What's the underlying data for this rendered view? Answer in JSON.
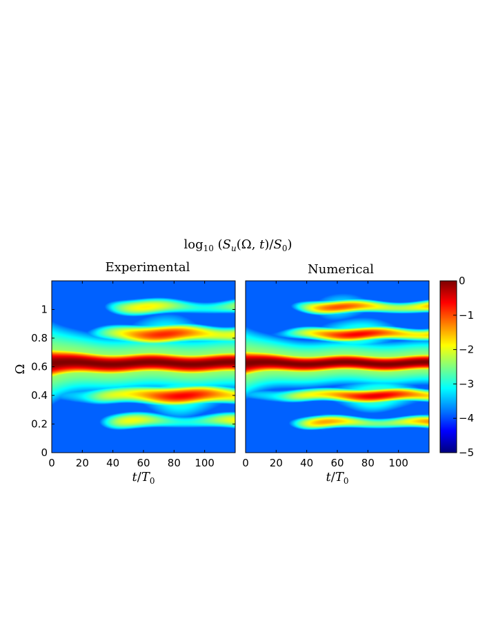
{
  "figure": {
    "title": "log 10 (Su(Ω, t)/S0)"
  },
  "chart_data": [
    {
      "type": "heatmap",
      "title": "Experimental",
      "xlabel": "t/T0",
      "ylabel": "Ω",
      "xlim": [
        0,
        120
      ],
      "ylim": [
        0,
        1.2
      ],
      "xticks": [
        "0",
        "20",
        "40",
        "60",
        "80",
        "100"
      ],
      "yticks": [
        "0",
        "0.2",
        "0.4",
        "0.6",
        "0.8",
        "1"
      ],
      "clim": [
        -5,
        0
      ],
      "bands": [
        {
          "omega": 0.625,
          "start": 0,
          "peak": 0.0,
          "width": 0.018
        },
        {
          "omega": 0.4,
          "start": 15,
          "peak": -0.6,
          "width": 0.018
        },
        {
          "omega": 0.83,
          "start": 15,
          "peak": -0.8,
          "width": 0.018
        },
        {
          "omega": 1.02,
          "start": 20,
          "peak": -1.8,
          "width": 0.018
        },
        {
          "omega": 0.22,
          "start": 20,
          "peak": -1.8,
          "width": 0.018
        }
      ]
    },
    {
      "type": "heatmap",
      "title": "Numerical",
      "xlabel": "t/T0",
      "ylabel": "",
      "xlim": [
        0,
        120
      ],
      "ylim": [
        0,
        1.2
      ],
      "xticks": [
        "0",
        "20",
        "40",
        "60",
        "80",
        "100"
      ],
      "yticks": [],
      "clim": [
        -5,
        0
      ],
      "bands": [
        {
          "omega": 0.625,
          "start": 0,
          "peak": 0.0,
          "width": 0.018
        },
        {
          "omega": 0.4,
          "start": 15,
          "peak": -0.5,
          "width": 0.016
        },
        {
          "omega": 0.83,
          "start": 15,
          "peak": -0.6,
          "width": 0.016
        },
        {
          "omega": 1.02,
          "start": 20,
          "peak": -1.0,
          "width": 0.016
        },
        {
          "omega": 0.21,
          "start": 20,
          "peak": -1.3,
          "width": 0.016
        }
      ]
    }
  ],
  "colorbar": {
    "ticks": [
      "0",
      "−1",
      "−2",
      "−3",
      "−4",
      "−5"
    ],
    "values": [
      0,
      -1,
      -2,
      -3,
      -4,
      -5
    ],
    "colormap": "jet"
  }
}
